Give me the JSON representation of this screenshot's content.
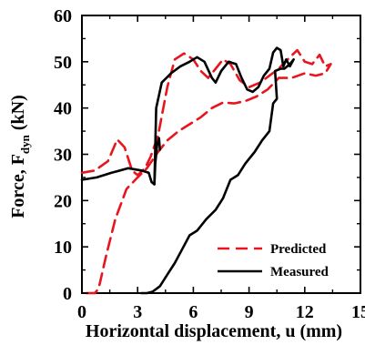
{
  "chart_data": {
    "type": "line",
    "xlabel": "Horizontal displacement, u (mm)",
    "ylabel_parts": {
      "main": "Force, F",
      "sub": "dyn",
      "unit": " (kN)"
    },
    "xlim": [
      0,
      15
    ],
    "ylim": [
      0,
      60
    ],
    "xticks": [
      "0",
      "3",
      "6",
      "9",
      "12",
      "15"
    ],
    "yticks": [
      "0",
      "10",
      "20",
      "30",
      "40",
      "50",
      "60"
    ],
    "grid": false,
    "legend_position": "bottom-right",
    "series": [
      {
        "name": "Predicted",
        "color": "#e8141e",
        "style": "dashed",
        "points": [
          [
            0.0,
            26.0
          ],
          [
            0.7,
            26.5
          ],
          [
            1.4,
            28.5
          ],
          [
            1.9,
            33.2
          ],
          [
            2.3,
            31.5
          ],
          [
            2.7,
            26.5
          ],
          [
            3.0,
            25.5
          ],
          [
            3.4,
            27.0
          ],
          [
            3.7,
            29.5
          ],
          [
            4.1,
            34.0
          ],
          [
            4.6,
            44.5
          ],
          [
            5.0,
            50.5
          ],
          [
            5.5,
            51.8
          ],
          [
            6.0,
            50.5
          ],
          [
            6.4,
            48.0
          ],
          [
            6.8,
            46.5
          ],
          [
            7.2,
            48.5
          ],
          [
            7.6,
            50.5
          ],
          [
            8.0,
            49.5
          ],
          [
            8.5,
            46.0
          ],
          [
            9.0,
            44.5
          ],
          [
            9.6,
            45.5
          ],
          [
            10.1,
            47.0
          ],
          [
            10.6,
            48.5
          ],
          [
            11.2,
            51.0
          ],
          [
            11.6,
            52.5
          ],
          [
            12.0,
            50.0
          ],
          [
            12.4,
            49.5
          ],
          [
            12.8,
            51.5
          ],
          [
            13.1,
            49.0
          ],
          [
            13.4,
            49.5
          ],
          [
            13.1,
            47.5
          ],
          [
            12.6,
            47.0
          ],
          [
            12.0,
            47.5
          ],
          [
            11.3,
            46.5
          ],
          [
            10.6,
            46.5
          ],
          [
            10.0,
            44.0
          ],
          [
            9.4,
            42.5
          ],
          [
            8.8,
            41.5
          ],
          [
            8.2,
            41.0
          ],
          [
            7.6,
            41.2
          ],
          [
            7.0,
            40.0
          ],
          [
            6.4,
            38.0
          ],
          [
            5.8,
            36.5
          ],
          [
            5.2,
            35.0
          ],
          [
            4.6,
            33.0
          ],
          [
            4.1,
            30.5
          ],
          [
            3.5,
            27.0
          ],
          [
            3.0,
            25.0
          ],
          [
            2.4,
            22.5
          ],
          [
            1.8,
            16.0
          ],
          [
            1.3,
            8.0
          ],
          [
            0.9,
            1.0
          ],
          [
            0.7,
            0.0
          ],
          [
            0.3,
            0.0
          ],
          [
            0.0,
            0.0
          ]
        ]
      },
      {
        "name": "Measured",
        "color": "#000000",
        "style": "solid",
        "points": [
          [
            0.0,
            24.5
          ],
          [
            0.8,
            25.0
          ],
          [
            1.6,
            26.0
          ],
          [
            2.5,
            27.0
          ],
          [
            3.2,
            26.5
          ],
          [
            3.6,
            26.0
          ],
          [
            3.75,
            24.0
          ],
          [
            3.9,
            23.5
          ],
          [
            4.0,
            40.0
          ],
          [
            4.3,
            45.5
          ],
          [
            4.8,
            47.5
          ],
          [
            5.3,
            49.0
          ],
          [
            5.8,
            50.0
          ],
          [
            6.2,
            51.0
          ],
          [
            6.6,
            50.0
          ],
          [
            7.0,
            46.5
          ],
          [
            7.2,
            45.5
          ],
          [
            7.5,
            48.0
          ],
          [
            7.9,
            50.0
          ],
          [
            8.3,
            49.5
          ],
          [
            8.6,
            46.5
          ],
          [
            8.9,
            44.0
          ],
          [
            9.2,
            43.5
          ],
          [
            9.5,
            44.5
          ],
          [
            9.8,
            47.0
          ],
          [
            10.1,
            48.5
          ],
          [
            10.3,
            52.0
          ],
          [
            10.5,
            53.0
          ],
          [
            10.7,
            52.5
          ],
          [
            10.85,
            49.0
          ],
          [
            11.0,
            50.5
          ],
          [
            11.2,
            49.0
          ],
          [
            11.4,
            50.5
          ],
          [
            11.2,
            49.5
          ],
          [
            10.9,
            48.5
          ],
          [
            10.7,
            48.5
          ],
          [
            10.4,
            48.0
          ],
          [
            10.5,
            42.0
          ],
          [
            10.3,
            41.0
          ],
          [
            10.1,
            35.0
          ],
          [
            9.7,
            33.0
          ],
          [
            9.3,
            30.5
          ],
          [
            8.8,
            28.0
          ],
          [
            8.4,
            25.5
          ],
          [
            8.0,
            24.5
          ],
          [
            7.6,
            20.5
          ],
          [
            7.2,
            18.0
          ],
          [
            6.7,
            16.0
          ],
          [
            6.2,
            13.5
          ],
          [
            5.8,
            12.5
          ],
          [
            5.4,
            9.5
          ],
          [
            5.0,
            6.5
          ],
          [
            4.6,
            4.0
          ],
          [
            4.2,
            1.5
          ],
          [
            3.8,
            0.3
          ],
          [
            3.5,
            0.0
          ],
          [
            3.2,
            0.0
          ]
        ]
      },
      {
        "name": "",
        "color": "#000000",
        "style": "solid",
        "points": [
          [
            3.9,
            23.5
          ],
          [
            3.95,
            28.0
          ],
          [
            4.05,
            32.0
          ],
          [
            4.15,
            33.5
          ],
          [
            4.2,
            31.0
          ]
        ]
      }
    ]
  }
}
